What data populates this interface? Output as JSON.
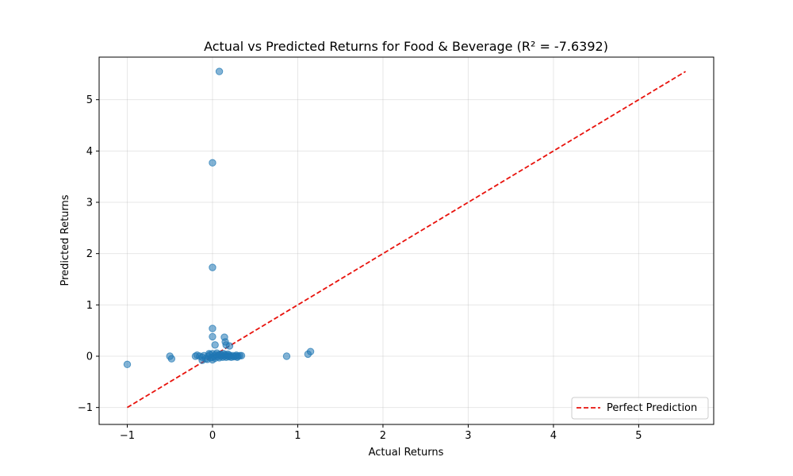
{
  "chart_data": {
    "type": "scatter",
    "title": "Actual vs Predicted Returns for Food & Beverage (R² = -7.6392)",
    "xlabel": "Actual Returns",
    "ylabel": "Predicted Returns",
    "xlim": [
      -1.33,
      5.88
    ],
    "ylim": [
      -1.33,
      5.83
    ],
    "xticks": [
      -1,
      0,
      1,
      2,
      3,
      4,
      5
    ],
    "yticks": [
      -1,
      0,
      1,
      2,
      3,
      4,
      5
    ],
    "xtick_labels": [
      "−1",
      "0",
      "1",
      "2",
      "3",
      "4",
      "5"
    ],
    "ytick_labels": [
      "−1",
      "0",
      "1",
      "2",
      "3",
      "4",
      "5"
    ],
    "grid": true,
    "legend": {
      "location": "lower-right",
      "entries": [
        "Perfect Prediction"
      ]
    },
    "colors": {
      "points": "#1f77b4",
      "reference_line": "#e8120c"
    },
    "reference_line": {
      "name": "Perfect Prediction",
      "x": [
        -1.0,
        5.55
      ],
      "y": [
        -1.0,
        5.55
      ],
      "style": "dashed"
    },
    "series": [
      {
        "points": [
          [
            0.08,
            5.55
          ],
          [
            0.0,
            3.77
          ],
          [
            0.0,
            1.73
          ],
          [
            0.0,
            0.54
          ],
          [
            0.0,
            0.38
          ],
          [
            0.14,
            0.37
          ],
          [
            0.15,
            0.28
          ],
          [
            0.03,
            0.22
          ],
          [
            0.2,
            0.2
          ],
          [
            0.16,
            0.22
          ],
          [
            -1.0,
            -0.16
          ],
          [
            -0.5,
            0.0
          ],
          [
            -0.48,
            -0.05
          ],
          [
            0.87,
            0.0
          ],
          [
            1.12,
            0.04
          ],
          [
            1.15,
            0.09
          ],
          [
            -0.2,
            0.0
          ],
          [
            -0.18,
            0.02
          ],
          [
            -0.15,
            0.0
          ],
          [
            -0.12,
            -0.02
          ],
          [
            -0.1,
            0.01
          ],
          [
            -0.08,
            -0.05
          ],
          [
            -0.12,
            -0.08
          ],
          [
            -0.05,
            0.0
          ],
          [
            -0.03,
            0.03
          ],
          [
            -0.02,
            -0.03
          ],
          [
            0.0,
            0.05
          ],
          [
            0.0,
            -0.02
          ],
          [
            0.0,
            -0.07
          ],
          [
            0.02,
            0.0
          ],
          [
            0.03,
            -0.04
          ],
          [
            0.04,
            0.03
          ],
          [
            0.05,
            0.06
          ],
          [
            0.06,
            -0.01
          ],
          [
            0.07,
            0.02
          ],
          [
            0.08,
            -0.03
          ],
          [
            0.09,
            0.04
          ],
          [
            0.1,
            0.0
          ],
          [
            0.11,
            0.02
          ],
          [
            0.12,
            -0.02
          ],
          [
            0.13,
            0.05
          ],
          [
            0.14,
            0.0
          ],
          [
            0.15,
            0.03
          ],
          [
            0.16,
            -0.02
          ],
          [
            0.17,
            0.01
          ],
          [
            0.18,
            0.04
          ],
          [
            0.19,
            -0.01
          ],
          [
            0.2,
            0.02
          ],
          [
            0.21,
            0.0
          ],
          [
            0.22,
            -0.02
          ],
          [
            0.24,
            0.01
          ],
          [
            0.25,
            -0.01
          ],
          [
            0.27,
            0.0
          ],
          [
            0.28,
            0.02
          ],
          [
            0.29,
            -0.02
          ],
          [
            0.3,
            0.0
          ],
          [
            0.32,
            0.01
          ],
          [
            0.34,
            0.01
          ],
          [
            -0.06,
            -0.06
          ],
          [
            -0.04,
            0.05
          ]
        ]
      }
    ]
  }
}
